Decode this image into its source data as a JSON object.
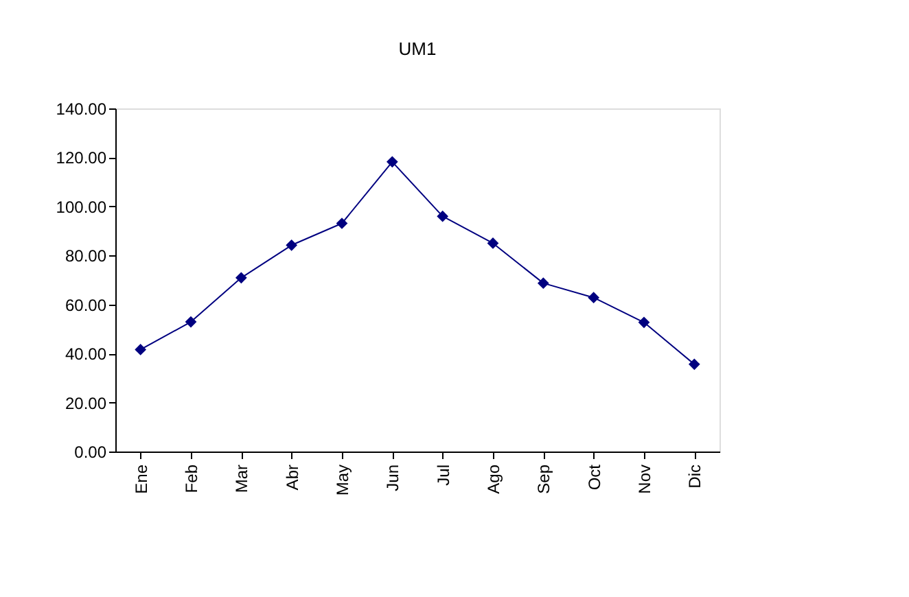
{
  "chart_data": {
    "type": "line",
    "title": "UM1",
    "categories": [
      "Ene",
      "Feb",
      "Mar",
      "Abr",
      "May",
      "Jun",
      "Jul",
      "Ago",
      "Sep",
      "Oct",
      "Nov",
      "Dic"
    ],
    "series": [
      {
        "color": "#000080",
        "values": [
          41.6,
          52.9,
          70.9,
          84.2,
          93.1,
          118.2,
          96.0,
          85.0,
          68.7,
          62.8,
          52.7,
          35.6
        ]
      }
    ],
    "ylim": [
      0,
      140
    ],
    "yticks": [
      {
        "value": 0,
        "label": "0.00"
      },
      {
        "value": 20,
        "label": "20.00"
      },
      {
        "value": 40,
        "label": "40.00"
      },
      {
        "value": 60,
        "label": "60.00"
      },
      {
        "value": 80,
        "label": "80.00"
      },
      {
        "value": 100,
        "label": "100.00"
      },
      {
        "value": 120,
        "label": "120.00"
      },
      {
        "value": 140,
        "label": "140.00"
      }
    ],
    "marker": "diamond",
    "grid": false
  }
}
